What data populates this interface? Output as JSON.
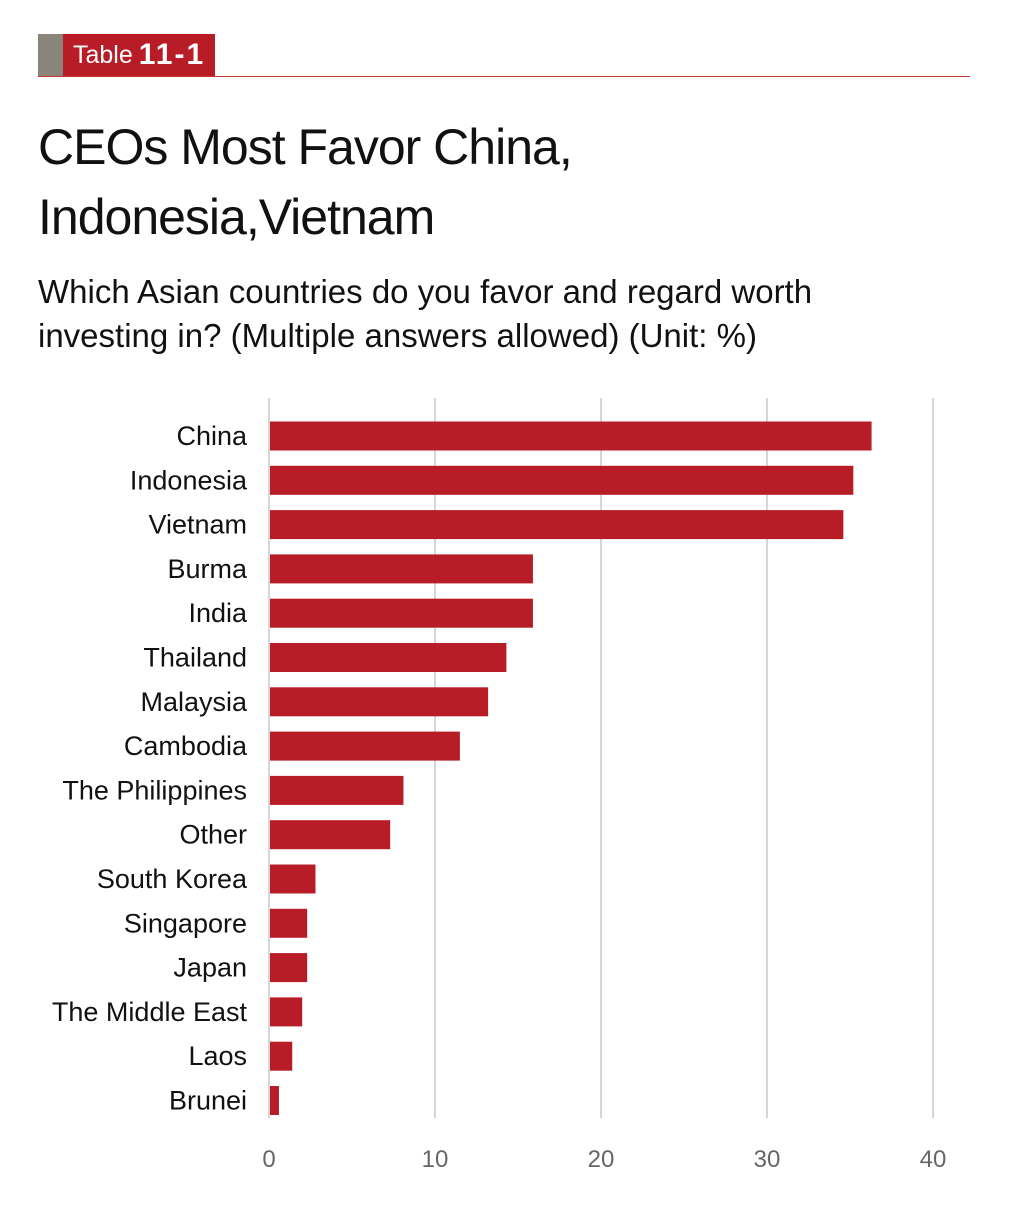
{
  "header": {
    "tag_word": "Table",
    "tag_number": "11-1",
    "title_line1": "CEOs Most Favor China,",
    "title_line2": "Indonesia,Vietnam",
    "subtitle_line1": "Which Asian countries do you favor and regard worth",
    "subtitle_line2": "investing in? (Multiple answers allowed) (Unit: %)"
  },
  "colors": {
    "bar": "#b71c27",
    "grid": "#c8c8c8",
    "tag_grey": "#8a857b"
  },
  "chart_data": {
    "type": "bar",
    "orientation": "horizontal",
    "categories": [
      "China",
      "Indonesia",
      "Vietnam",
      "Burma",
      "India",
      "Thailand",
      "Malaysia",
      "Cambodia",
      "The Philippines",
      "Other",
      "South Korea",
      "Singapore",
      "Japan",
      "The Middle East",
      "Laos",
      "Brunei"
    ],
    "values": [
      36.3,
      35.2,
      34.6,
      15.9,
      15.9,
      14.3,
      13.2,
      11.5,
      8.1,
      7.3,
      2.8,
      2.3,
      2.3,
      2.0,
      1.4,
      0.6
    ],
    "xlim": [
      0,
      40
    ],
    "xticks": [
      0,
      10,
      20,
      30,
      40
    ],
    "xlabel": "",
    "ylabel": "",
    "grid": "vertical",
    "legend": "none"
  }
}
